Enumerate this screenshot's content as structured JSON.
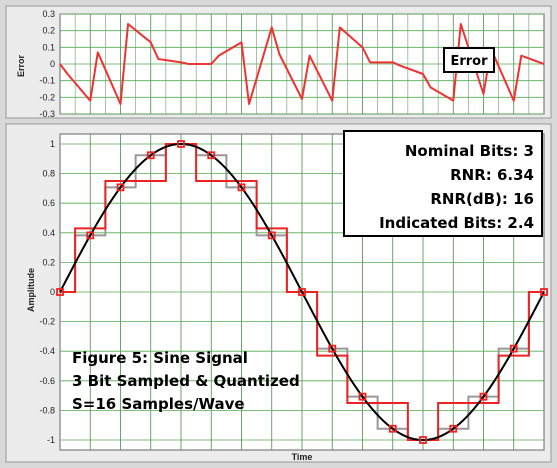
{
  "chart_data": [
    {
      "type": "line",
      "title": "",
      "xlabel": "",
      "ylabel": "Error",
      "ylim": [
        -0.3,
        0.3
      ],
      "yticks": [
        "0.3",
        "0.2",
        "0.1",
        "0",
        "-0.1",
        "-0.2",
        "-0.3"
      ],
      "grid": true,
      "legend": {
        "placement": "top-right",
        "entries": [
          "Error"
        ]
      },
      "colors": {
        "error": "#ee3333"
      },
      "series": [
        {
          "name": "Error",
          "x": [
            0,
            0.25,
            1,
            1.25,
            2,
            2.25,
            3,
            3.25,
            4,
            4.25,
            5,
            5.25,
            6,
            6.25,
            7,
            7.25,
            8,
            8.25,
            9,
            9.25,
            10,
            10.25,
            11,
            11.25,
            12,
            12.25,
            13,
            13.25,
            14,
            14.25,
            15,
            15.25,
            16
          ],
          "y": [
            0,
            -0.06,
            -0.22,
            0.07,
            -0.24,
            0.24,
            0.13,
            0.03,
            0.01,
            0.0,
            0.0,
            0.05,
            0.13,
            -0.24,
            0.22,
            0.06,
            -0.21,
            0.05,
            -0.22,
            0.22,
            0.1,
            0.01,
            0.01,
            -0.01,
            -0.06,
            -0.14,
            -0.22,
            0.24,
            -0.18,
            0.09,
            -0.22,
            0.05,
            0.0
          ]
        }
      ]
    },
    {
      "type": "line",
      "title": "",
      "xlabel": "Time",
      "ylabel": "Amplitude",
      "ylim": [
        -1,
        1
      ],
      "yticks": [
        "1",
        "0.8",
        "0.6",
        "0.4",
        "0.2",
        "0",
        "-0.2",
        "-0.4",
        "-0.6",
        "-0.8",
        "-1"
      ],
      "grid": true,
      "colors": {
        "signal": "#000000",
        "quantized": "#ee2222",
        "sampled": "#999999",
        "marker": "#ee2222"
      },
      "series": [
        {
          "name": "",
          "role": "signal",
          "x": [
            0,
            16
          ],
          "y": [
            0,
            0
          ],
          "note_shape": "sine",
          "amplitude": 1,
          "period": 16
        },
        {
          "name": "",
          "role": "sampled-step",
          "x": [
            0,
            1,
            2,
            3,
            4,
            5,
            6,
            7,
            8,
            9,
            10,
            11,
            12,
            13,
            14,
            15,
            16
          ],
          "y": [
            0,
            0.3827,
            0.7071,
            0.9239,
            1,
            0.9239,
            0.7071,
            0.3827,
            0,
            -0.3827,
            -0.7071,
            -0.9239,
            -1,
            -0.9239,
            -0.7071,
            -0.3827,
            0
          ]
        },
        {
          "name": "",
          "role": "quantized-step",
          "x": [
            0,
            1,
            2,
            3,
            4,
            5,
            6,
            7,
            8,
            9,
            10,
            11,
            12,
            13,
            14,
            15,
            16
          ],
          "y": [
            0,
            0.43,
            0.75,
            0.75,
            1,
            0.75,
            0.75,
            0.43,
            0,
            -0.43,
            -0.75,
            -0.75,
            -1,
            -0.75,
            -0.75,
            -0.43,
            0
          ]
        }
      ]
    }
  ],
  "stats": {
    "nominal_bits": "Nominal Bits: 3",
    "rnr": "RNR: 6.34",
    "rnr_db": "RNR(dB): 16",
    "indicated_bits": "Indicated Bits: 2.4"
  },
  "caption": {
    "line1": "Figure 5: Sine Signal",
    "line2": "3 Bit Sampled & Quantized",
    "line3": "S=16 Samples/Wave"
  }
}
